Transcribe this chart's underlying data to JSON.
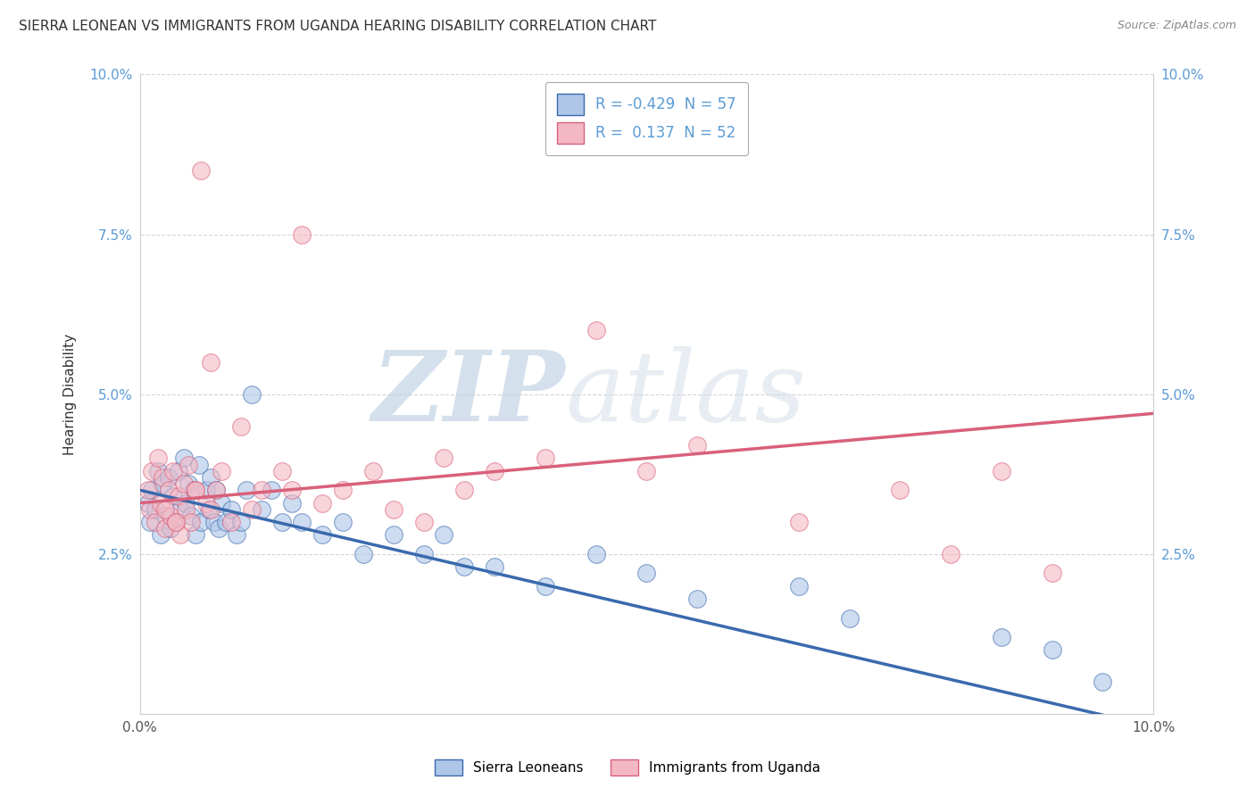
{
  "title": "SIERRA LEONEAN VS IMMIGRANTS FROM UGANDA HEARING DISABILITY CORRELATION CHART",
  "source": "Source: ZipAtlas.com",
  "ylabel": "Hearing Disability",
  "xlim": [
    0.0,
    10.0
  ],
  "ylim": [
    0.0,
    10.0
  ],
  "xticks": [
    0.0,
    10.0
  ],
  "yticks": [
    0.0,
    2.5,
    5.0,
    7.5,
    10.0
  ],
  "xtick_labels": [
    "0.0%",
    "10.0%"
  ],
  "ytick_labels_left": [
    "",
    "2.5%",
    "5.0%",
    "7.5%",
    "10.0%"
  ],
  "ytick_labels_right": [
    "",
    "2.5%",
    "5.0%",
    "7.5%",
    "10.0%"
  ],
  "legend_entries": [
    {
      "label": "Sierra Leoneans",
      "color": "#aec6e8"
    },
    {
      "label": "Immigrants from Uganda",
      "color": "#f4a5b0"
    }
  ],
  "R1": -0.429,
  "N1": 57,
  "R2": 0.137,
  "N2": 52,
  "color_blue": "#aec6e8",
  "color_pink": "#f4b8c4",
  "line_color_blue": "#3a6aad",
  "line_color_pink": "#d9607a",
  "background_color": "#ffffff",
  "watermark_color": "#cdd9e8",
  "title_fontsize": 11,
  "source_fontsize": 9,
  "sierra_x": [
    0.08,
    0.1,
    0.12,
    0.15,
    0.18,
    0.2,
    0.22,
    0.25,
    0.28,
    0.3,
    0.33,
    0.35,
    0.38,
    0.4,
    0.43,
    0.45,
    0.48,
    0.5,
    0.53,
    0.55,
    0.58,
    0.6,
    0.65,
    0.68,
    0.7,
    0.73,
    0.75,
    0.78,
    0.8,
    0.85,
    0.9,
    0.95,
    1.0,
    1.05,
    1.1,
    1.2,
    1.3,
    1.4,
    1.5,
    1.6,
    1.8,
    2.0,
    2.2,
    2.5,
    2.8,
    3.0,
    3.2,
    3.5,
    4.0,
    4.5,
    5.0,
    5.5,
    6.5,
    7.0,
    8.5,
    9.0,
    9.5
  ],
  "sierra_y": [
    3.3,
    3.0,
    3.5,
    3.2,
    3.8,
    2.8,
    3.6,
    3.1,
    3.7,
    2.9,
    3.4,
    3.0,
    3.8,
    3.2,
    4.0,
    3.3,
    3.6,
    3.1,
    3.5,
    2.8,
    3.9,
    3.0,
    3.5,
    3.2,
    3.7,
    3.0,
    3.5,
    2.9,
    3.3,
    3.0,
    3.2,
    2.8,
    3.0,
    3.5,
    5.0,
    3.2,
    3.5,
    3.0,
    3.3,
    3.0,
    2.8,
    3.0,
    2.5,
    2.8,
    2.5,
    2.8,
    2.3,
    2.3,
    2.0,
    2.5,
    2.2,
    1.8,
    2.0,
    1.5,
    1.2,
    1.0,
    0.5
  ],
  "uganda_x": [
    0.08,
    0.1,
    0.12,
    0.15,
    0.18,
    0.2,
    0.22,
    0.25,
    0.28,
    0.3,
    0.33,
    0.35,
    0.38,
    0.4,
    0.43,
    0.45,
    0.48,
    0.5,
    0.55,
    0.6,
    0.65,
    0.7,
    0.75,
    0.8,
    0.9,
    1.0,
    1.1,
    1.2,
    1.4,
    1.6,
    1.8,
    2.0,
    2.3,
    2.8,
    3.2,
    3.5,
    4.0,
    4.5,
    5.0,
    5.5,
    6.5,
    7.5,
    8.0,
    8.5,
    9.0,
    1.5,
    2.5,
    3.0,
    0.25,
    0.35,
    0.55,
    0.7
  ],
  "uganda_y": [
    3.5,
    3.2,
    3.8,
    3.0,
    4.0,
    3.3,
    3.7,
    2.9,
    3.5,
    3.1,
    3.8,
    3.0,
    3.4,
    2.8,
    3.6,
    3.2,
    3.9,
    3.0,
    3.5,
    8.5,
    3.3,
    5.5,
    3.5,
    3.8,
    3.0,
    4.5,
    3.2,
    3.5,
    3.8,
    7.5,
    3.3,
    3.5,
    3.8,
    3.0,
    3.5,
    3.8,
    4.0,
    6.0,
    3.8,
    4.2,
    3.0,
    3.5,
    2.5,
    3.8,
    2.2,
    3.5,
    3.2,
    4.0,
    3.2,
    3.0,
    3.5,
    3.2
  ],
  "blue_line_x0": 0.0,
  "blue_line_y0": 3.5,
  "blue_line_x1": 10.0,
  "blue_line_y1": -0.2,
  "pink_line_x0": 0.0,
  "pink_line_y0": 3.3,
  "pink_line_x1": 10.0,
  "pink_line_y1": 4.7
}
